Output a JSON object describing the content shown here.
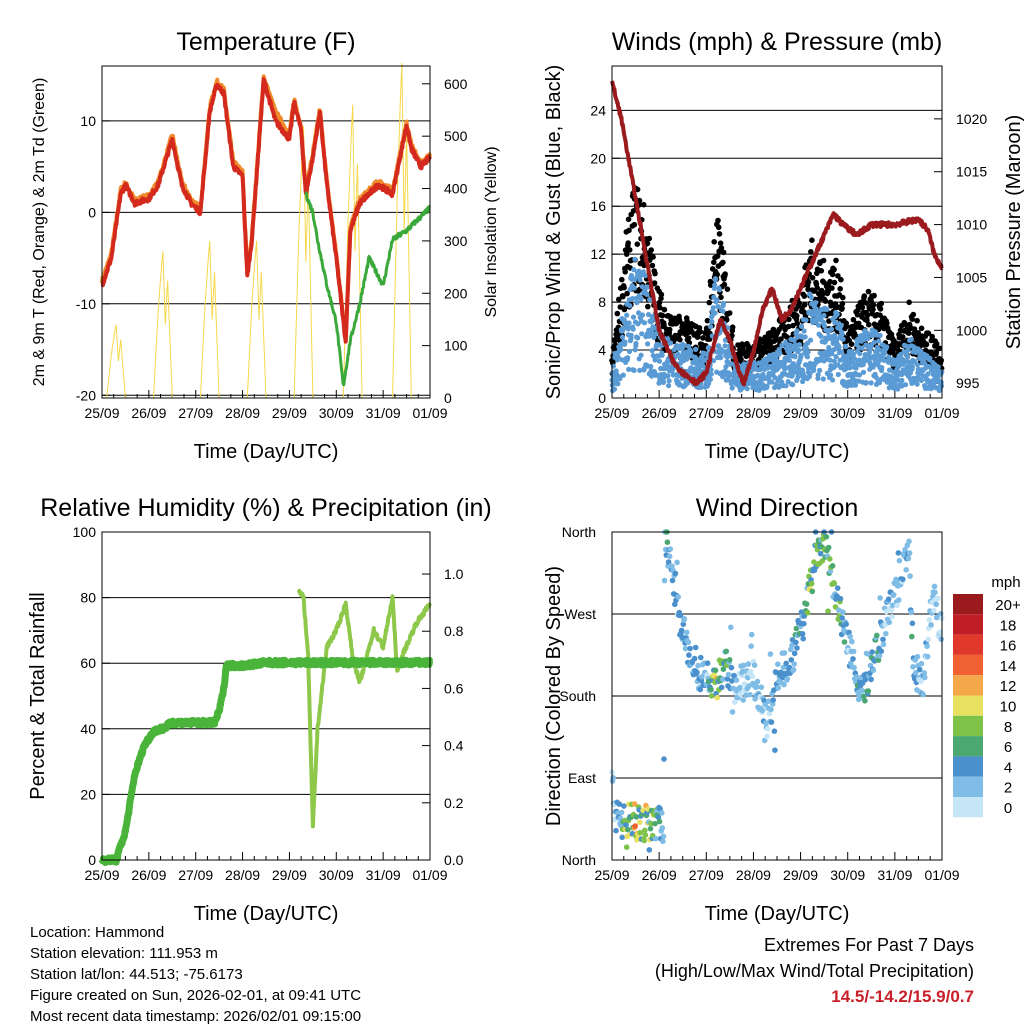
{
  "info": {
    "location": "Location: Hammond",
    "elevation": "Station elevation: 111.953 m",
    "latlon": "Station lat/lon: 44.513; -75.6173",
    "created": "Figure created on Sun, 2026-02-01, at 09:41 UTC",
    "recent": "Most recent data timestamp: 2026/02/01 09:15:00"
  },
  "extremes": {
    "title": "Extremes For Past 7 Days",
    "subtitle": "(High/Low/Max Wind/Total Precipitation)",
    "values": "14.5/-14.2/15.9/0.7",
    "color": "#c8202a"
  },
  "chart_data": [
    {
      "type": "line",
      "title": "Temperature (F)",
      "xlabel": "Time (Day/UTC)",
      "ylabel": "2m & 9m T (Red, Orange) & 2m Td (Green)",
      "y2label": "Solar Insolation (Yellow)",
      "xticks": [
        "25/09",
        "26/09",
        "27/09",
        "28/09",
        "29/09",
        "30/09",
        "31/09",
        "01/09"
      ],
      "ylim": [
        -20.3,
        16
      ],
      "yticks": [
        -20,
        -10,
        0,
        10
      ],
      "y2lim": [
        0,
        634
      ],
      "y2ticks": [
        0,
        100,
        200,
        300,
        400,
        500,
        600
      ],
      "series": [
        {
          "name": "2m T",
          "color": "#d42a1e",
          "axis": "left",
          "points": [
            [
              0,
              -8
            ],
            [
              0.2,
              -5
            ],
            [
              0.4,
              2
            ],
            [
              0.5,
              3
            ],
            [
              0.7,
              1
            ],
            [
              1.0,
              1.5
            ],
            [
              1.2,
              3
            ],
            [
              1.5,
              8
            ],
            [
              1.7,
              3
            ],
            [
              1.9,
              1
            ],
            [
              2.1,
              0
            ],
            [
              2.3,
              11
            ],
            [
              2.45,
              14
            ],
            [
              2.6,
              13
            ],
            [
              2.8,
              5
            ],
            [
              3.0,
              4
            ],
            [
              3.1,
              -7
            ],
            [
              3.2,
              -3
            ],
            [
              3.45,
              14.5
            ],
            [
              3.7,
              10
            ],
            [
              4.0,
              8
            ],
            [
              4.1,
              12
            ],
            [
              4.25,
              9
            ],
            [
              4.35,
              2
            ],
            [
              4.5,
              6
            ],
            [
              4.65,
              11
            ],
            [
              4.8,
              3
            ],
            [
              5.0,
              -5
            ],
            [
              5.2,
              -14.2
            ],
            [
              5.3,
              -2
            ],
            [
              5.5,
              1
            ],
            [
              5.9,
              3
            ],
            [
              6.2,
              2
            ],
            [
              6.5,
              9.5
            ],
            [
              6.6,
              7
            ],
            [
              6.8,
              5
            ],
            [
              7.0,
              6
            ]
          ]
        },
        {
          "name": "9m T",
          "color": "#f08a2a",
          "axis": "left",
          "points": [
            [
              0,
              -7.5
            ],
            [
              0.2,
              -4.5
            ],
            [
              0.4,
              2.5
            ],
            [
              0.5,
              3.2
            ],
            [
              0.7,
              1.3
            ],
            [
              1.0,
              1.8
            ],
            [
              1.2,
              3.3
            ],
            [
              1.5,
              8.5
            ],
            [
              1.7,
              3.4
            ],
            [
              1.9,
              1.4
            ],
            [
              2.1,
              0.4
            ],
            [
              2.3,
              11.5
            ],
            [
              2.45,
              14.3
            ],
            [
              2.6,
              13.4
            ],
            [
              2.8,
              5.5
            ],
            [
              3.0,
              4.4
            ],
            [
              3.1,
              -6.5
            ],
            [
              3.2,
              -2.5
            ],
            [
              3.45,
              14.8
            ],
            [
              3.7,
              11
            ],
            [
              4.0,
              8.5
            ],
            [
              4.1,
              12.4
            ],
            [
              4.25,
              9.4
            ],
            [
              4.35,
              2.4
            ],
            [
              4.5,
              6.4
            ],
            [
              4.65,
              11.3
            ],
            [
              4.8,
              3.4
            ],
            [
              5.0,
              -4.6
            ],
            [
              5.2,
              -13.8
            ],
            [
              5.3,
              -1.6
            ],
            [
              5.5,
              1.4
            ],
            [
              5.9,
              3.4
            ],
            [
              6.2,
              2.4
            ],
            [
              6.5,
              9.8
            ],
            [
              6.6,
              7.4
            ],
            [
              6.8,
              5.3
            ],
            [
              7.0,
              6.2
            ]
          ]
        },
        {
          "name": "2m Td",
          "color": "#3aa83a",
          "axis": "left",
          "points": [
            [
              4.35,
              2
            ],
            [
              4.5,
              0
            ],
            [
              4.6,
              -3
            ],
            [
              4.8,
              -8
            ],
            [
              5.0,
              -12
            ],
            [
              5.15,
              -19
            ],
            [
              5.3,
              -14
            ],
            [
              5.5,
              -10
            ],
            [
              5.7,
              -5
            ],
            [
              6.0,
              -8
            ],
            [
              6.2,
              -3
            ],
            [
              6.5,
              -2
            ],
            [
              6.8,
              -0.5
            ],
            [
              7.0,
              0.5
            ]
          ]
        },
        {
          "name": "Solar Insolation",
          "color": "#f5d84a",
          "axis": "right",
          "peaks": [
            [
              0.3,
              140
            ],
            [
              1.3,
              280
            ],
            [
              2.3,
              300
            ],
            [
              3.3,
              300
            ],
            [
              4.3,
              520
            ],
            [
              5.35,
              560
            ],
            [
              6.4,
              640
            ]
          ]
        }
      ]
    },
    {
      "type": "scatter",
      "title": "Winds (mph) & Pressure (mb)",
      "xlabel": "Time (Day/UTC)",
      "ylabel": "Sonic/Prop Wind & Gust (Blue, Black)",
      "y2label": "Station Pressure (Maroon)",
      "xticks": [
        "25/09",
        "26/09",
        "27/09",
        "28/09",
        "29/09",
        "30/09",
        "31/09",
        "01/09"
      ],
      "ylim": [
        0,
        27.7
      ],
      "yticks": [
        0,
        4,
        8,
        12,
        16,
        20,
        24
      ],
      "y2lim": [
        993.6,
        1025
      ],
      "y2ticks": [
        995,
        1000,
        1005,
        1010,
        1015,
        1020
      ],
      "wind_envelope": [
        [
          0,
          3
        ],
        [
          0.3,
          12
        ],
        [
          0.5,
          16
        ],
        [
          0.7,
          14
        ],
        [
          1,
          8
        ],
        [
          1.3,
          6
        ],
        [
          1.5,
          6
        ],
        [
          2,
          5
        ],
        [
          2.2,
          14
        ],
        [
          2.4,
          10
        ],
        [
          2.6,
          4
        ],
        [
          3,
          4
        ],
        [
          3.4,
          5
        ],
        [
          3.8,
          7
        ],
        [
          4,
          8
        ],
        [
          4.2,
          12
        ],
        [
          4.4,
          10
        ],
        [
          4.6,
          10
        ],
        [
          4.8,
          10
        ],
        [
          5,
          5
        ],
        [
          5.4,
          8
        ],
        [
          5.7,
          7
        ],
        [
          6,
          4
        ],
        [
          6.3,
          7
        ],
        [
          6.6,
          5
        ],
        [
          7,
          4
        ]
      ],
      "pressure": [
        [
          0,
          1023.5
        ],
        [
          0.2,
          1020
        ],
        [
          0.4,
          1015
        ],
        [
          0.6,
          1010
        ],
        [
          0.8,
          1005
        ],
        [
          1.0,
          1000
        ],
        [
          1.3,
          997
        ],
        [
          1.5,
          996
        ],
        [
          1.8,
          995
        ],
        [
          2.0,
          996
        ],
        [
          2.3,
          1001
        ],
        [
          2.5,
          999
        ],
        [
          2.7,
          996
        ],
        [
          2.8,
          995
        ],
        [
          3.0,
          998
        ],
        [
          3.2,
          1002
        ],
        [
          3.4,
          1004
        ],
        [
          3.6,
          1001
        ],
        [
          3.8,
          1002
        ],
        [
          4.0,
          1004
        ],
        [
          4.2,
          1006
        ],
        [
          4.5,
          1009
        ],
        [
          4.7,
          1011
        ],
        [
          4.9,
          1010
        ],
        [
          5.2,
          1009
        ],
        [
          5.5,
          1010
        ],
        [
          6.0,
          1010
        ],
        [
          6.5,
          1010.5
        ],
        [
          6.7,
          1009.5
        ],
        [
          6.85,
          1007
        ],
        [
          7.0,
          1006
        ]
      ],
      "colors": {
        "gust": "#000000",
        "wind": "#5a9bd5",
        "pressure": "#9a1a1e"
      }
    },
    {
      "type": "line",
      "title": "Relative Humidity (%) & Precipitation (in)",
      "xlabel": "Time (Day/UTC)",
      "ylabel": "Percent & Total Rainfall",
      "xticks": [
        "25/09",
        "26/09",
        "27/09",
        "28/09",
        "29/09",
        "30/09",
        "31/09",
        "01/09"
      ],
      "ylim": [
        0,
        100
      ],
      "yticks": [
        0,
        20,
        40,
        60,
        80,
        100
      ],
      "y2lim": [
        0,
        1.147
      ],
      "y2ticks": [
        "0.0",
        "0.2",
        "0.4",
        "0.6",
        "0.8",
        "1.0"
      ],
      "series": [
        {
          "name": "Relative Humidity",
          "color": "#8ec84a",
          "axis": "left",
          "points": [
            [
              4.2,
              82
            ],
            [
              4.3,
              80
            ],
            [
              4.4,
              62
            ],
            [
              4.5,
              10
            ],
            [
              4.6,
              40
            ],
            [
              4.8,
              65
            ],
            [
              5.0,
              70
            ],
            [
              5.2,
              78
            ],
            [
              5.35,
              62
            ],
            [
              5.5,
              54
            ],
            [
              5.8,
              70
            ],
            [
              6.0,
              65
            ],
            [
              6.2,
              80
            ],
            [
              6.3,
              57
            ],
            [
              6.4,
              62
            ],
            [
              6.7,
              72
            ],
            [
              7.0,
              78
            ]
          ]
        },
        {
          "name": "Total Precipitation",
          "color": "#4ab43a",
          "axis": "right",
          "points": [
            [
              0,
              0
            ],
            [
              0.3,
              0
            ],
            [
              0.5,
              0.1
            ],
            [
              0.7,
              0.3
            ],
            [
              0.9,
              0.4
            ],
            [
              1.1,
              0.45
            ],
            [
              1.3,
              0.46
            ],
            [
              1.5,
              0.48
            ],
            [
              2.4,
              0.48
            ],
            [
              2.5,
              0.52
            ],
            [
              2.6,
              0.6
            ],
            [
              2.65,
              0.68
            ],
            [
              3,
              0.68
            ],
            [
              3.5,
              0.69
            ],
            [
              7,
              0.69
            ]
          ]
        }
      ]
    },
    {
      "type": "scatter",
      "title": "Wind Direction",
      "xlabel": "Time (Day/UTC)",
      "ylabel": "Direction (Colored By Speed)",
      "xticks": [
        "25/09",
        "26/09",
        "27/09",
        "28/09",
        "29/09",
        "30/09",
        "31/09",
        "01/09"
      ],
      "yticks": [
        "North",
        "East",
        "South",
        "West",
        "North"
      ],
      "ylim": [
        0,
        360
      ],
      "direction_path": [
        [
          0,
          90
        ],
        [
          0.05,
          60
        ],
        [
          0.1,
          45
        ],
        [
          0.5,
          42
        ],
        [
          1.0,
          40
        ],
        [
          1.1,
          38
        ],
        [
          1.12,
          360
        ],
        [
          1.3,
          300
        ],
        [
          1.5,
          250
        ],
        [
          1.8,
          210
        ],
        [
          2.2,
          190
        ],
        [
          2.4,
          220
        ],
        [
          2.6,
          190
        ],
        [
          3.0,
          200
        ],
        [
          3.3,
          150
        ],
        [
          3.5,
          200
        ],
        [
          3.8,
          220
        ],
        [
          4.1,
          270
        ],
        [
          4.3,
          330
        ],
        [
          4.5,
          350
        ],
        [
          4.7,
          300
        ],
        [
          5.0,
          240
        ],
        [
          5.3,
          180
        ],
        [
          5.6,
          230
        ],
        [
          6.0,
          290
        ],
        [
          6.3,
          340
        ],
        [
          6.4,
          210
        ],
        [
          6.6,
          200
        ],
        [
          6.8,
          290
        ],
        [
          7.0,
          250
        ]
      ],
      "legend": {
        "title": "mph",
        "labels": [
          "20+",
          "18",
          "16",
          "14",
          "12",
          "10",
          "8",
          "6",
          "4",
          "2",
          "0"
        ],
        "colors": [
          "#9a1a1e",
          "#c01e26",
          "#e0392c",
          "#f06030",
          "#f5a84a",
          "#e8e060",
          "#7fc24a",
          "#4aa870",
          "#4a90cc",
          "#7fbde6",
          "#c6e6f7"
        ]
      }
    }
  ]
}
